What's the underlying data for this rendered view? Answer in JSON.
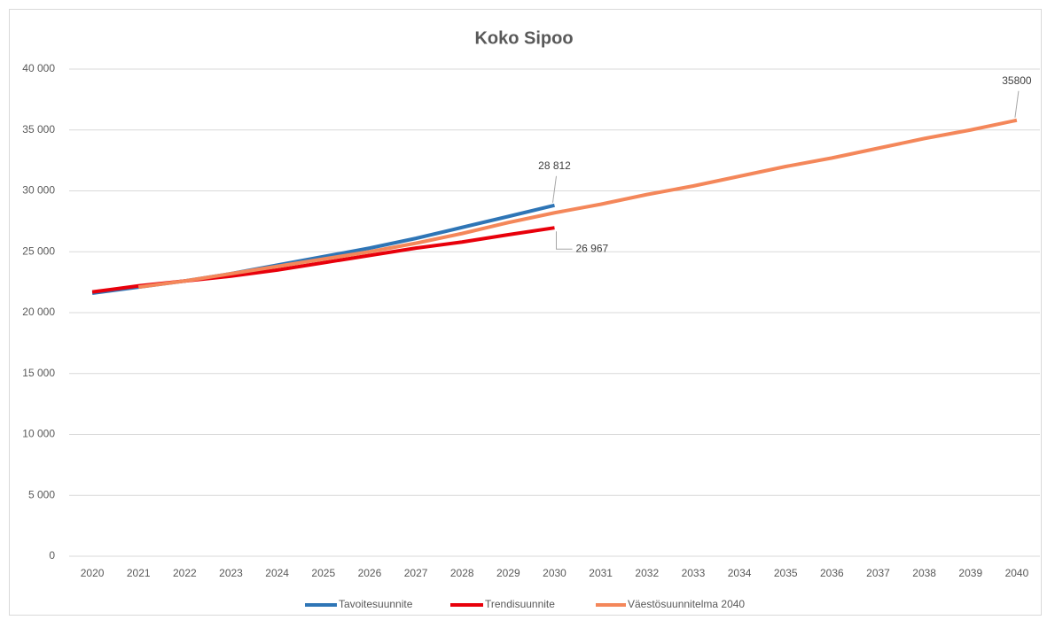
{
  "chart_data": {
    "type": "line",
    "title": "Koko Sipoo",
    "categories": [
      "2020",
      "2021",
      "2022",
      "2023",
      "2024",
      "2025",
      "2026",
      "2027",
      "2028",
      "2029",
      "2030",
      "2031",
      "2032",
      "2033",
      "2034",
      "2035",
      "2036",
      "2037",
      "2038",
      "2039",
      "2040"
    ],
    "series": [
      {
        "name": "Tavoitesuunnite",
        "color": "#2e75b6",
        "values": [
          21600,
          22100,
          22600,
          23200,
          23900,
          24600,
          25300,
          26100,
          27000,
          27900,
          28812,
          null,
          null,
          null,
          null,
          null,
          null,
          null,
          null,
          null,
          null
        ],
        "value_labels": [
          null,
          null,
          null,
          null,
          null,
          null,
          null,
          null,
          null,
          null,
          "28 812",
          null,
          null,
          null,
          null,
          null,
          null,
          null,
          null,
          null,
          null
        ]
      },
      {
        "name": "Trendisuunnite",
        "color": "#e8000b",
        "values": [
          21700,
          22200,
          22600,
          23000,
          23500,
          24100,
          24700,
          25300,
          25800,
          26400,
          26967,
          null,
          null,
          null,
          null,
          null,
          null,
          null,
          null,
          null,
          null
        ],
        "value_labels": [
          null,
          null,
          null,
          null,
          null,
          null,
          null,
          null,
          null,
          null,
          "26 967",
          null,
          null,
          null,
          null,
          null,
          null,
          null,
          null,
          null,
          null
        ]
      },
      {
        "name": "Väestösuunnitelma 2040",
        "color": "#f4875a",
        "values": [
          null,
          22100,
          22600,
          23200,
          23800,
          24400,
          25000,
          25700,
          26500,
          27400,
          28200,
          28900,
          29700,
          30400,
          31200,
          32000,
          32700,
          33500,
          34300,
          35000,
          35800
        ],
        "value_labels": [
          null,
          null,
          null,
          null,
          null,
          null,
          null,
          null,
          null,
          null,
          null,
          null,
          null,
          null,
          null,
          null,
          null,
          null,
          null,
          null,
          "35800"
        ]
      }
    ],
    "ylim": [
      0,
      40000
    ],
    "yticks": [
      0,
      {
        "value": 5000,
        "label": "5 000"
      },
      {
        "value": 10000,
        "label": "10 000"
      },
      {
        "value": 15000,
        "label": "15 000"
      },
      {
        "value": 20000,
        "label": "20 000"
      },
      {
        "value": 25000,
        "label": "25 000"
      },
      {
        "value": 30000,
        "label": "30 000"
      },
      {
        "value": 35000,
        "label": "35 000"
      },
      {
        "value": 40000,
        "label": "40 000"
      }
    ],
    "grid": true,
    "legend": "bottom"
  }
}
